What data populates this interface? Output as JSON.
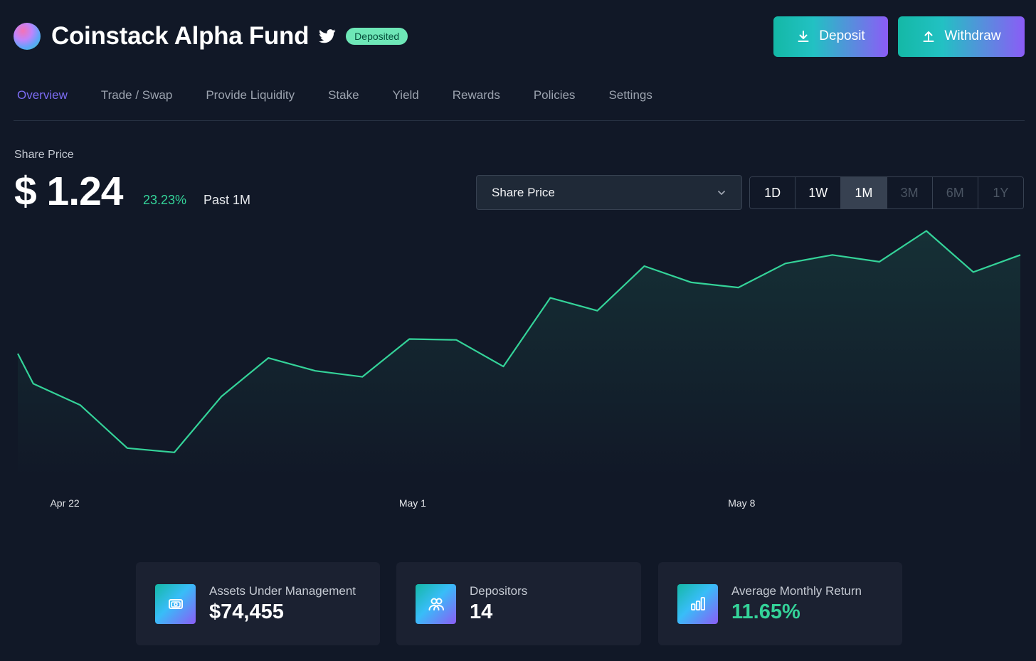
{
  "header": {
    "title": "Coinstack Alpha Fund",
    "badge": "Deposited",
    "deposit_label": "Deposit",
    "withdraw_label": "Withdraw",
    "logo_icon": "gradient-orb-icon",
    "twitter_icon": "twitter-icon"
  },
  "tabs": [
    {
      "label": "Overview",
      "active": true
    },
    {
      "label": "Trade / Swap",
      "active": false
    },
    {
      "label": "Provide Liquidity",
      "active": false
    },
    {
      "label": "Stake",
      "active": false
    },
    {
      "label": "Yield",
      "active": false
    },
    {
      "label": "Rewards",
      "active": false
    },
    {
      "label": "Policies",
      "active": false
    },
    {
      "label": "Settings",
      "active": false
    }
  ],
  "share_price": {
    "label": "Share Price",
    "value": "$ 1.24",
    "change": "23.23%",
    "period": "Past 1M"
  },
  "metric_select": {
    "selected": "Share Price"
  },
  "ranges": [
    {
      "label": "1D",
      "state": "normal"
    },
    {
      "label": "1W",
      "state": "normal"
    },
    {
      "label": "1M",
      "state": "selected"
    },
    {
      "label": "3M",
      "state": "disabled"
    },
    {
      "label": "6M",
      "state": "disabled"
    },
    {
      "label": "1Y",
      "state": "disabled"
    }
  ],
  "colors": {
    "background": "#111827",
    "accent": "#7c6cf2",
    "line": "#34d399",
    "positive": "#34d399"
  },
  "chart_data": {
    "type": "area",
    "x_ticks": [
      "Apr 22",
      "May 1",
      "May 8"
    ],
    "x": [
      0,
      0.33,
      1.33,
      2.33,
      3.33,
      4.33,
      5.33,
      6.33,
      7.33,
      8.33,
      9.33,
      10.33,
      11.33,
      12.33,
      13.33,
      14.33,
      15.33,
      16.33,
      17.33,
      18.33,
      19.33,
      20.33,
      21.33
    ],
    "values": [
      1.045,
      1.01,
      0.985,
      0.935,
      0.93,
      0.995,
      1.04,
      1.025,
      1.018,
      1.062,
      1.061,
      1.03,
      1.11,
      1.095,
      1.147,
      1.128,
      1.122,
      1.15,
      1.16,
      1.152,
      1.188,
      1.14,
      1.16
    ],
    "tick_positions": [
      1,
      8.4,
      15.4
    ],
    "ylim": [
      0.9,
      1.2
    ],
    "grid": false,
    "legend": false
  },
  "stats": [
    {
      "label": "Assets Under Management",
      "value": "$74,455",
      "icon": "money-icon",
      "highlight": false
    },
    {
      "label": "Depositors",
      "value": "14",
      "icon": "users-icon",
      "highlight": false
    },
    {
      "label": "Average Monthly Return",
      "value": "11.65%",
      "icon": "bar-chart-icon",
      "highlight": true
    }
  ]
}
